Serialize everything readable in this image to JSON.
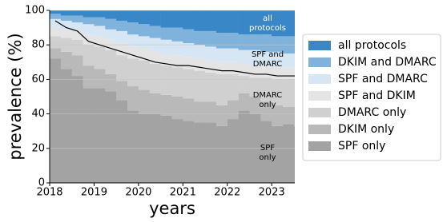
{
  "chart_data": {
    "type": "stacked_bar",
    "xlabel": "years",
    "ylabel": "prevalence (%)",
    "x": [
      2018.0,
      2018.25,
      2018.5,
      2018.75,
      2019.0,
      2019.25,
      2019.5,
      2019.75,
      2020.0,
      2020.25,
      2020.5,
      2020.75,
      2021.0,
      2021.25,
      2021.5,
      2021.75,
      2022.0,
      2022.25,
      2022.5,
      2022.75,
      2023.0,
      2023.25,
      2023.5
    ],
    "series": [
      {
        "name": "SPF only",
        "color": "#a3a3a3",
        "values": [
          72,
          66,
          62,
          55,
          55,
          53,
          48,
          42,
          40,
          40,
          39,
          37,
          36,
          35,
          35,
          33,
          37,
          42,
          40,
          36,
          33,
          34,
          33
        ]
      },
      {
        "name": "DKIM only",
        "color": "#b9b9b9",
        "values": [
          6,
          10,
          12,
          13,
          11,
          10,
          11,
          14,
          14,
          12,
          12,
          13,
          13,
          12,
          12,
          12,
          11,
          10,
          10,
          11,
          12,
          10,
          11
        ]
      },
      {
        "name": "DMARC only",
        "color": "#d0d0d0",
        "values": [
          7,
          8,
          9,
          12,
          13,
          14,
          15,
          16,
          17,
          17,
          17,
          17,
          17,
          18,
          17,
          18,
          15,
          10,
          11,
          14,
          15,
          16,
          16
        ]
      },
      {
        "name": "SPF and DKIM",
        "color": "#e4e4e4",
        "values": [
          5,
          5,
          5,
          6,
          6,
          6,
          7,
          7,
          7,
          7,
          7,
          7,
          7,
          7,
          7,
          7,
          7,
          7,
          7,
          7,
          7,
          7,
          7
        ]
      },
      {
        "name": "SPF and DMARC",
        "color": "#d6e6f4",
        "values": [
          5,
          5,
          5,
          6,
          6,
          6,
          7,
          7,
          7,
          8,
          8,
          8,
          8,
          8,
          8,
          8,
          8,
          8,
          9,
          8,
          9,
          8,
          8
        ]
      },
      {
        "name": "DKIM and DMARC",
        "color": "#7fb3dc",
        "values": [
          3,
          3,
          4,
          4,
          5,
          6,
          6,
          7,
          7,
          7,
          7,
          8,
          8,
          8,
          9,
          9,
          9,
          9,
          9,
          10,
          9,
          10,
          10
        ]
      },
      {
        "name": "all protocols",
        "color": "#3a87c8",
        "values": [
          2,
          3,
          3,
          4,
          4,
          5,
          6,
          7,
          8,
          9,
          10,
          10,
          11,
          12,
          12,
          13,
          13,
          14,
          14,
          14,
          15,
          15,
          15
        ]
      }
    ],
    "overlay": {
      "color": "#000000",
      "values": [
        94,
        90,
        88,
        82,
        80,
        78,
        76,
        74,
        72,
        70,
        69,
        68,
        68,
        67,
        66,
        65,
        65,
        64,
        63,
        63,
        62,
        62,
        62
      ]
    },
    "annotations": [
      [
        "all",
        "protocols"
      ],
      [
        "SPF and",
        "DMARC"
      ],
      [
        "DMARC",
        "only"
      ],
      [
        "SPF",
        "only"
      ]
    ],
    "xlim": [
      2018,
      2023.52
    ],
    "xticks": [
      2018,
      2019,
      2020,
      2021,
      2022,
      2023
    ],
    "ylim": [
      0,
      100
    ],
    "yticks": [
      0,
      20,
      40,
      60,
      80,
      100
    ],
    "grid": true,
    "legend": "right"
  }
}
